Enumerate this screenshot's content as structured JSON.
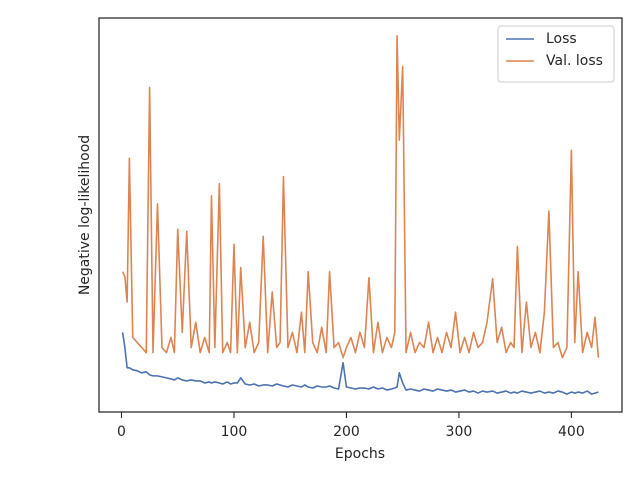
{
  "chart_data": {
    "type": "line",
    "xlabel": "Epochs",
    "ylabel": "Negative log-likelihood",
    "x": [
      1,
      3,
      5,
      7,
      10,
      14,
      18,
      22,
      25,
      28,
      32,
      36,
      40,
      44,
      47,
      50,
      54,
      58,
      62,
      66,
      70,
      74,
      78,
      80,
      83,
      87,
      90,
      94,
      97,
      100,
      103,
      106,
      110,
      114,
      118,
      122,
      126,
      130,
      134,
      138,
      141,
      144,
      148,
      152,
      156,
      160,
      163,
      166,
      170,
      174,
      178,
      182,
      185,
      189,
      193,
      197,
      200,
      204,
      208,
      212,
      216,
      220,
      224,
      228,
      232,
      236,
      240,
      243,
      245,
      247,
      250,
      253,
      257,
      261,
      265,
      269,
      273,
      277,
      281,
      285,
      289,
      293,
      297,
      301,
      305,
      309,
      313,
      317,
      321,
      325,
      330,
      334,
      338,
      342,
      346,
      349,
      352,
      356,
      360,
      364,
      368,
      372,
      376,
      380,
      384,
      388,
      392,
      396,
      400,
      403,
      406,
      410,
      414,
      418,
      421,
      424
    ],
    "series": [
      {
        "name": "Loss",
        "color": "#4c72b0",
        "values": [
          9.0,
          7.5,
          5.5,
          5.5,
          5.3,
          5.2,
          5.0,
          5.1,
          4.8,
          4.7,
          4.7,
          4.6,
          4.5,
          4.4,
          4.3,
          4.5,
          4.3,
          4.2,
          4.3,
          4.2,
          4.2,
          4.0,
          4.1,
          4.0,
          4.1,
          4.0,
          3.9,
          4.1,
          3.9,
          4.0,
          4.0,
          4.5,
          3.9,
          3.8,
          3.9,
          3.7,
          3.8,
          3.8,
          3.7,
          3.9,
          3.8,
          3.7,
          3.6,
          3.8,
          3.7,
          3.6,
          3.8,
          3.6,
          3.5,
          3.7,
          3.6,
          3.6,
          3.7,
          3.5,
          3.4,
          6.0,
          3.6,
          3.5,
          3.4,
          3.5,
          3.5,
          3.4,
          3.6,
          3.4,
          3.5,
          3.3,
          3.4,
          3.5,
          3.6,
          5.0,
          4.0,
          3.3,
          3.4,
          3.3,
          3.2,
          3.4,
          3.3,
          3.2,
          3.4,
          3.3,
          3.2,
          3.3,
          3.1,
          3.2,
          3.3,
          3.1,
          3.2,
          3.0,
          3.2,
          3.1,
          3.2,
          3.0,
          3.1,
          3.2,
          3.0,
          3.1,
          3.0,
          3.2,
          3.1,
          3.0,
          3.1,
          3.2,
          3.0,
          3.1,
          3.0,
          3.2,
          3.1,
          2.9,
          3.1,
          3.0,
          3.1,
          3.0,
          3.2,
          2.9,
          3.0,
          3.1
        ]
      },
      {
        "name": "Val. loss",
        "color": "#dd8452",
        "values": [
          15.0,
          14.5,
          12.0,
          26.2,
          8.5,
          8.0,
          7.5,
          7.0,
          33.2,
          7.0,
          21.7,
          7.5,
          7.0,
          8.5,
          7.0,
          19.2,
          9.0,
          19.0,
          7.5,
          10.0,
          7.0,
          8.5,
          7.0,
          22.5,
          7.5,
          23.7,
          7.0,
          8.0,
          7.0,
          17.7,
          7.0,
          15.4,
          7.5,
          10.0,
          7.0,
          8.0,
          18.5,
          7.0,
          13.0,
          7.5,
          8.0,
          24.4,
          7.5,
          9.0,
          7.0,
          11.0,
          7.0,
          15.0,
          8.0,
          7.0,
          9.5,
          7.0,
          15.0,
          7.5,
          8.0,
          6.5,
          7.5,
          8.5,
          7.0,
          9.0,
          7.5,
          14.4,
          7.0,
          10.0,
          7.0,
          8.5,
          7.5,
          9.0,
          38.3,
          28.0,
          35.3,
          7.0,
          9.0,
          7.0,
          8.0,
          7.5,
          10.0,
          7.0,
          8.5,
          7.0,
          9.0,
          7.5,
          11.0,
          7.0,
          8.5,
          7.0,
          9.0,
          7.5,
          8.0,
          10.0,
          14.3,
          8.0,
          9.5,
          7.0,
          8.0,
          7.5,
          17.5,
          7.0,
          12.0,
          7.5,
          9.0,
          7.0,
          11.0,
          21.0,
          7.5,
          8.0,
          6.5,
          7.5,
          27.0,
          8.0,
          15.0,
          7.0,
          9.0,
          7.5,
          10.5,
          6.5
        ]
      }
    ],
    "xlim": [
      -20,
      445
    ],
    "xticks": [
      0,
      100,
      200,
      300,
      400
    ],
    "legend": "upper right",
    "grid": false
  }
}
